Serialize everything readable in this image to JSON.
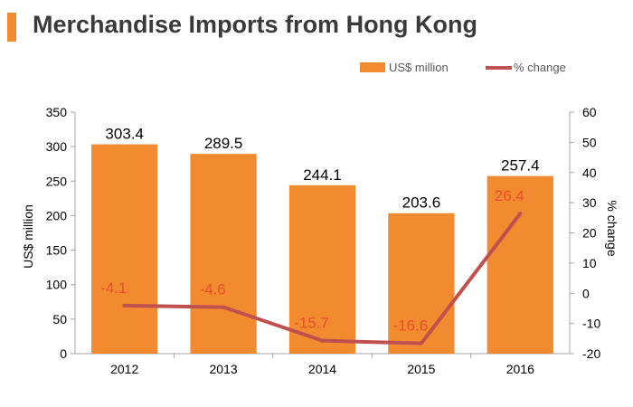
{
  "title": "Merchandise Imports from Hong Kong",
  "colors": {
    "accent": "#f28a30",
    "bar": "#f28a30",
    "line": "#c0504d",
    "line_label": "#e8502a",
    "axis": "#a6a6a6"
  },
  "chart_data": {
    "type": "bar",
    "categories": [
      "2012",
      "2013",
      "2014",
      "2015",
      "2016"
    ],
    "series": [
      {
        "name": "US$ million",
        "type": "bar",
        "axis": "left",
        "values": [
          303.4,
          289.5,
          244.1,
          203.6,
          257.4
        ],
        "labels": [
          "303.4",
          "289.5",
          "244.1",
          "203.6",
          "257.4"
        ]
      },
      {
        "name": "% change",
        "type": "line",
        "axis": "right",
        "values": [
          -4.1,
          -4.6,
          -15.7,
          -16.6,
          26.4
        ],
        "labels": [
          "-4.1",
          "-4.6",
          "-15.7",
          "-16.6",
          "26.4"
        ]
      }
    ],
    "ylabel": "US$ million",
    "y2label": "% change",
    "ylim": [
      0,
      350
    ],
    "yticks": [
      "0",
      "50",
      "100",
      "150",
      "200",
      "250",
      "300",
      "350"
    ],
    "y2lim": [
      -20,
      60
    ],
    "y2ticks": [
      "-20",
      "-10",
      "0",
      "10",
      "20",
      "30",
      "40",
      "50",
      "60"
    ],
    "legend": "top-right",
    "grid": false
  }
}
